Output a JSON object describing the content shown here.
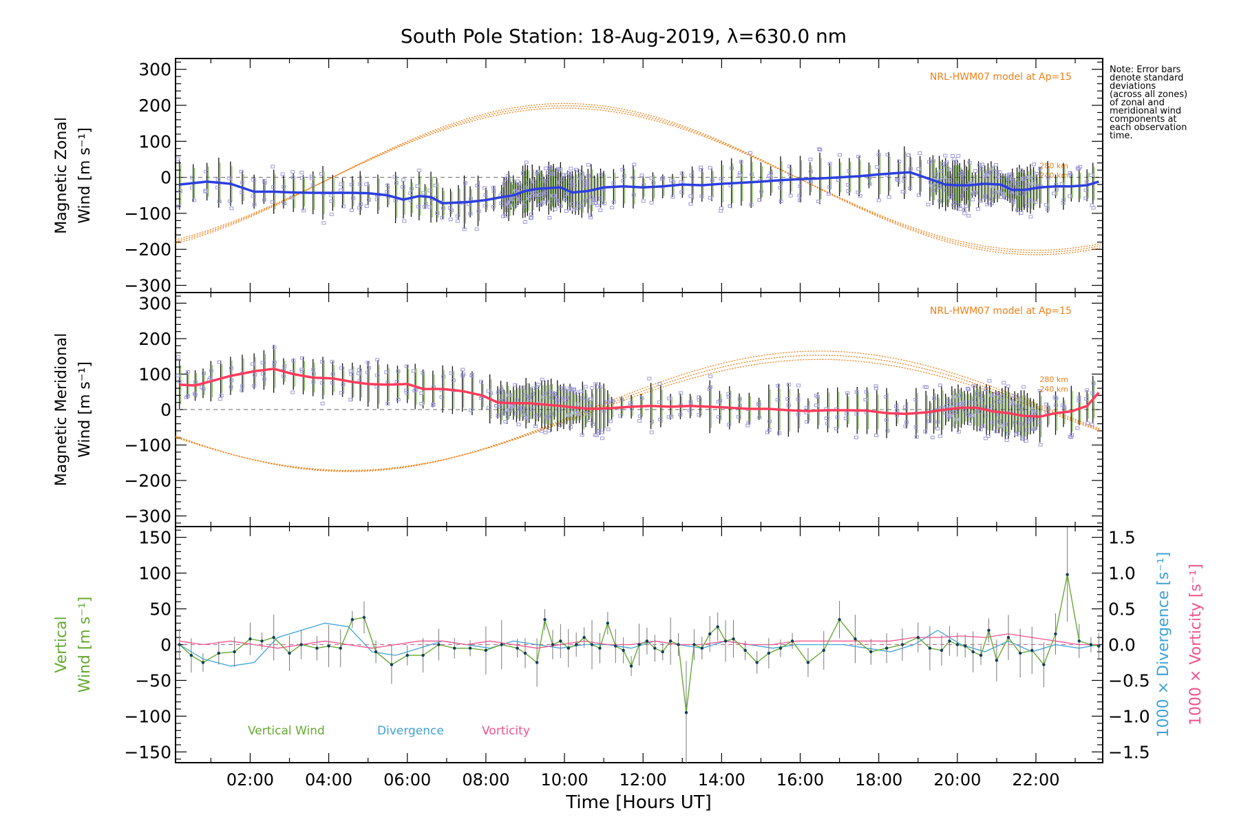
{
  "title": "South Pole Station: 18-Aug-2019, λ=630.0 nm",
  "note_lines": [
    "Note: Error bars",
    "denote standard",
    "deviations",
    "(across all zones)",
    "of zonal and",
    "meridional wind",
    "components at",
    "each observation",
    "time."
  ],
  "colors": {
    "zonal": "#2b3fe0",
    "meridional": "#ff3b5c",
    "model": "#f07f17",
    "zone_points": "#9c98d8",
    "error_bar": "#111111",
    "vertical": "#66a832",
    "divergence": "#3fa2d6",
    "vorticity": "#f2528c"
  },
  "chart_data": [
    {
      "type": "line",
      "panel": "zonal",
      "ylabel": [
        "Magnetic Zonal",
        "Wind [m s⁻¹]"
      ],
      "ylim": [
        -320,
        330
      ],
      "yticks": [
        300,
        200,
        100,
        0,
        -100,
        -200,
        -300
      ],
      "xlim": [
        0.1,
        23.7
      ],
      "model_label": "NRL-HWM07 model at Ap=15",
      "model_alt_labels": [
        "280 km",
        "240 km"
      ],
      "model_curve": {
        "name": "NRL-HWM07",
        "peak_hour": 10.0,
        "amplitude": 210,
        "offset": -5
      },
      "series": [
        {
          "name": "Zonal wind",
          "x": [
            0.2,
            0.9,
            1.5,
            2.1,
            2.6,
            3.1,
            3.6,
            4.1,
            4.6,
            5.0,
            5.5,
            5.9,
            6.3,
            6.6,
            6.9,
            7.3,
            7.6,
            8.0,
            8.4,
            8.7,
            9.0,
            9.3,
            9.6,
            9.9,
            10.2,
            10.6,
            11.0,
            11.5,
            12.0,
            12.5,
            13.0,
            13.5,
            14.0,
            14.5,
            15.0,
            15.5,
            16.0,
            16.5,
            17.0,
            17.5,
            18.0,
            18.5,
            18.8,
            19.3,
            19.7,
            20.0,
            20.3,
            20.7,
            21.1,
            21.4,
            21.7,
            22.1,
            22.5,
            22.9,
            23.3,
            23.6
          ],
          "values": [
            -20,
            -12,
            -18,
            -40,
            -40,
            -42,
            -43,
            -43,
            -43,
            -44,
            -50,
            -62,
            -52,
            -55,
            -72,
            -70,
            -68,
            -63,
            -55,
            -50,
            -38,
            -32,
            -30,
            -28,
            -42,
            -38,
            -28,
            -25,
            -28,
            -25,
            -20,
            -22,
            -18,
            -15,
            -12,
            -8,
            -5,
            -3,
            0,
            3,
            8,
            12,
            14,
            -5,
            -20,
            -22,
            -22,
            -18,
            -20,
            -35,
            -35,
            -28,
            -25,
            -25,
            -22,
            -12
          ]
        }
      ]
    },
    {
      "type": "line",
      "panel": "meridional",
      "ylabel": [
        "Magnetic Meridional",
        "Wind [m s⁻¹]"
      ],
      "ylim": [
        -330,
        330
      ],
      "yticks": [
        300,
        200,
        100,
        0,
        -100,
        -200,
        -300
      ],
      "xlim": [
        0.1,
        23.7
      ],
      "model_label": "NRL-HWM07 model at Ap=15",
      "model_alt_labels": [
        "280 km",
        "240 km"
      ],
      "model_curve": {
        "name": "NRL-HWM07",
        "trough_hour": 4.5,
        "amplitude": 170,
        "offset": -5
      },
      "series": [
        {
          "name": "Meridional wind",
          "x": [
            0.2,
            0.6,
            1.0,
            1.5,
            2.1,
            2.6,
            3.1,
            3.6,
            4.1,
            4.6,
            5.0,
            5.5,
            6.0,
            6.4,
            6.9,
            7.4,
            7.9,
            8.3,
            8.7,
            9.1,
            9.5,
            9.9,
            10.3,
            10.7,
            11.2,
            11.7,
            12.2,
            12.7,
            13.2,
            13.7,
            14.2,
            14.7,
            15.2,
            15.7,
            16.2,
            16.7,
            17.2,
            17.7,
            18.2,
            18.7,
            19.2,
            19.7,
            20.1,
            20.5,
            20.9,
            21.3,
            21.7,
            22.1,
            22.5,
            22.9,
            23.3,
            23.6
          ],
          "values": [
            70,
            68,
            80,
            95,
            108,
            115,
            100,
            90,
            88,
            78,
            72,
            70,
            72,
            58,
            58,
            52,
            40,
            20,
            18,
            18,
            14,
            10,
            5,
            2,
            4,
            8,
            10,
            8,
            10,
            8,
            5,
            2,
            2,
            -2,
            -4,
            -2,
            -2,
            -3,
            -10,
            -12,
            -8,
            0,
            5,
            5,
            -5,
            -10,
            -18,
            -20,
            -10,
            -5,
            10,
            48
          ]
        }
      ]
    },
    {
      "type": "line",
      "panel": "vertical",
      "ylabel": [
        "Vertical",
        "Wind [m s⁻¹]"
      ],
      "ylim": [
        -165,
        165
      ],
      "yticks": [
        150,
        100,
        50,
        0,
        -50,
        -100,
        -150
      ],
      "right_ylabels": [
        "1000 × Divergence [s⁻¹]",
        "1000 × Vorticity [s⁻¹]"
      ],
      "right_ylim": [
        -1.65,
        1.65
      ],
      "right_yticks": [
        1.5,
        1.0,
        0.5,
        0.0,
        -0.5,
        -1.0,
        -1.5
      ],
      "xlim": [
        0.1,
        23.7
      ],
      "xlabel": "Time [Hours UT]",
      "xticks": [
        "02:00",
        "04:00",
        "06:00",
        "08:00",
        "10:00",
        "12:00",
        "14:00",
        "16:00",
        "18:00",
        "20:00",
        "22:00"
      ],
      "legend": [
        "Vertical Wind",
        "Divergence",
        "Vorticity"
      ],
      "series": [
        {
          "name": "Vertical Wind",
          "x": [
            0.2,
            0.5,
            0.8,
            1.2,
            1.6,
            2.0,
            2.3,
            2.6,
            3.0,
            3.3,
            3.7,
            4.0,
            4.3,
            4.6,
            4.9,
            5.2,
            5.6,
            6.0,
            6.4,
            6.8,
            7.2,
            7.6,
            8.0,
            8.4,
            8.8,
            9.0,
            9.3,
            9.5,
            9.7,
            9.9,
            10.1,
            10.3,
            10.5,
            10.7,
            10.9,
            11.1,
            11.3,
            11.5,
            11.7,
            11.9,
            12.1,
            12.3,
            12.5,
            12.7,
            12.9,
            13.1,
            13.3,
            13.5,
            13.7,
            13.9,
            14.1,
            14.3,
            14.6,
            14.9,
            15.2,
            15.5,
            15.8,
            16.2,
            16.6,
            17.0,
            17.4,
            17.8,
            18.2,
            18.6,
            19.0,
            19.3,
            19.6,
            19.8,
            20.0,
            20.2,
            20.4,
            20.6,
            20.8,
            21.0,
            21.3,
            21.6,
            21.9,
            22.2,
            22.5,
            22.8,
            23.1,
            23.4,
            23.6
          ],
          "values": [
            0,
            -15,
            -25,
            -12,
            -10,
            8,
            5,
            10,
            -12,
            0,
            -5,
            -2,
            -5,
            35,
            38,
            -10,
            -28,
            -15,
            -15,
            0,
            -5,
            -5,
            -8,
            0,
            -5,
            -12,
            -25,
            35,
            0,
            5,
            -5,
            0,
            10,
            0,
            -5,
            30,
            -2,
            -8,
            -30,
            0,
            5,
            -5,
            -10,
            5,
            0,
            -95,
            0,
            -5,
            15,
            25,
            5,
            8,
            -8,
            -25,
            -12,
            -5,
            5,
            -25,
            -8,
            35,
            8,
            -10,
            -5,
            0,
            10,
            -5,
            -8,
            5,
            0,
            -2,
            -10,
            -15,
            20,
            -22,
            10,
            -12,
            -8,
            -28,
            15,
            98,
            5,
            0,
            -2
          ]
        },
        {
          "name": "Divergence",
          "x": [
            0.2,
            0.8,
            1.5,
            2.1,
            2.7,
            3.3,
            3.9,
            4.5,
            5.1,
            5.7,
            6.3,
            6.9,
            7.5,
            8.1,
            8.7,
            9.3,
            9.9,
            10.5,
            11.1,
            11.7,
            12.3,
            12.9,
            13.5,
            14.1,
            14.7,
            15.3,
            15.9,
            16.5,
            17.1,
            17.7,
            18.3,
            18.9,
            19.5,
            20.1,
            20.7,
            21.3,
            21.9,
            22.5,
            23.1,
            23.6
          ],
          "values": [
            0.0,
            -0.2,
            -0.3,
            -0.25,
            0.1,
            0.2,
            0.3,
            0.25,
            -0.1,
            -0.15,
            -0.05,
            0.05,
            0.0,
            -0.05,
            0.05,
            0.0,
            -0.05,
            0.0,
            0.0,
            -0.05,
            0.05,
            0.0,
            -0.05,
            0.05,
            0.0,
            -0.05,
            0.0,
            0.0,
            0.0,
            -0.05,
            -0.1,
            0.0,
            0.2,
            0.0,
            -0.1,
            0.05,
            -0.1,
            0.0,
            -0.05,
            0.0
          ]
        },
        {
          "name": "Vorticity",
          "x": [
            0.2,
            0.8,
            1.5,
            2.1,
            2.7,
            3.3,
            3.9,
            4.5,
            5.1,
            5.7,
            6.3,
            6.9,
            7.5,
            8.1,
            8.7,
            9.3,
            9.9,
            10.5,
            11.1,
            11.7,
            12.3,
            12.9,
            13.5,
            14.1,
            14.7,
            15.3,
            15.9,
            16.5,
            17.1,
            17.7,
            18.3,
            18.9,
            19.5,
            20.1,
            20.7,
            21.3,
            21.9,
            22.5,
            23.1,
            23.6
          ],
          "values": [
            0.05,
            0.0,
            0.05,
            0.0,
            -0.05,
            0.0,
            0.05,
            0.0,
            -0.05,
            0.0,
            0.05,
            0.05,
            0.0,
            0.05,
            0.0,
            -0.05,
            0.0,
            0.05,
            0.0,
            0.0,
            0.05,
            0.0,
            0.0,
            0.05,
            0.0,
            0.0,
            0.05,
            0.05,
            0.05,
            0.05,
            0.05,
            0.1,
            0.1,
            0.12,
            0.1,
            0.15,
            0.1,
            0.05,
            0.0,
            0.0
          ]
        }
      ]
    }
  ]
}
